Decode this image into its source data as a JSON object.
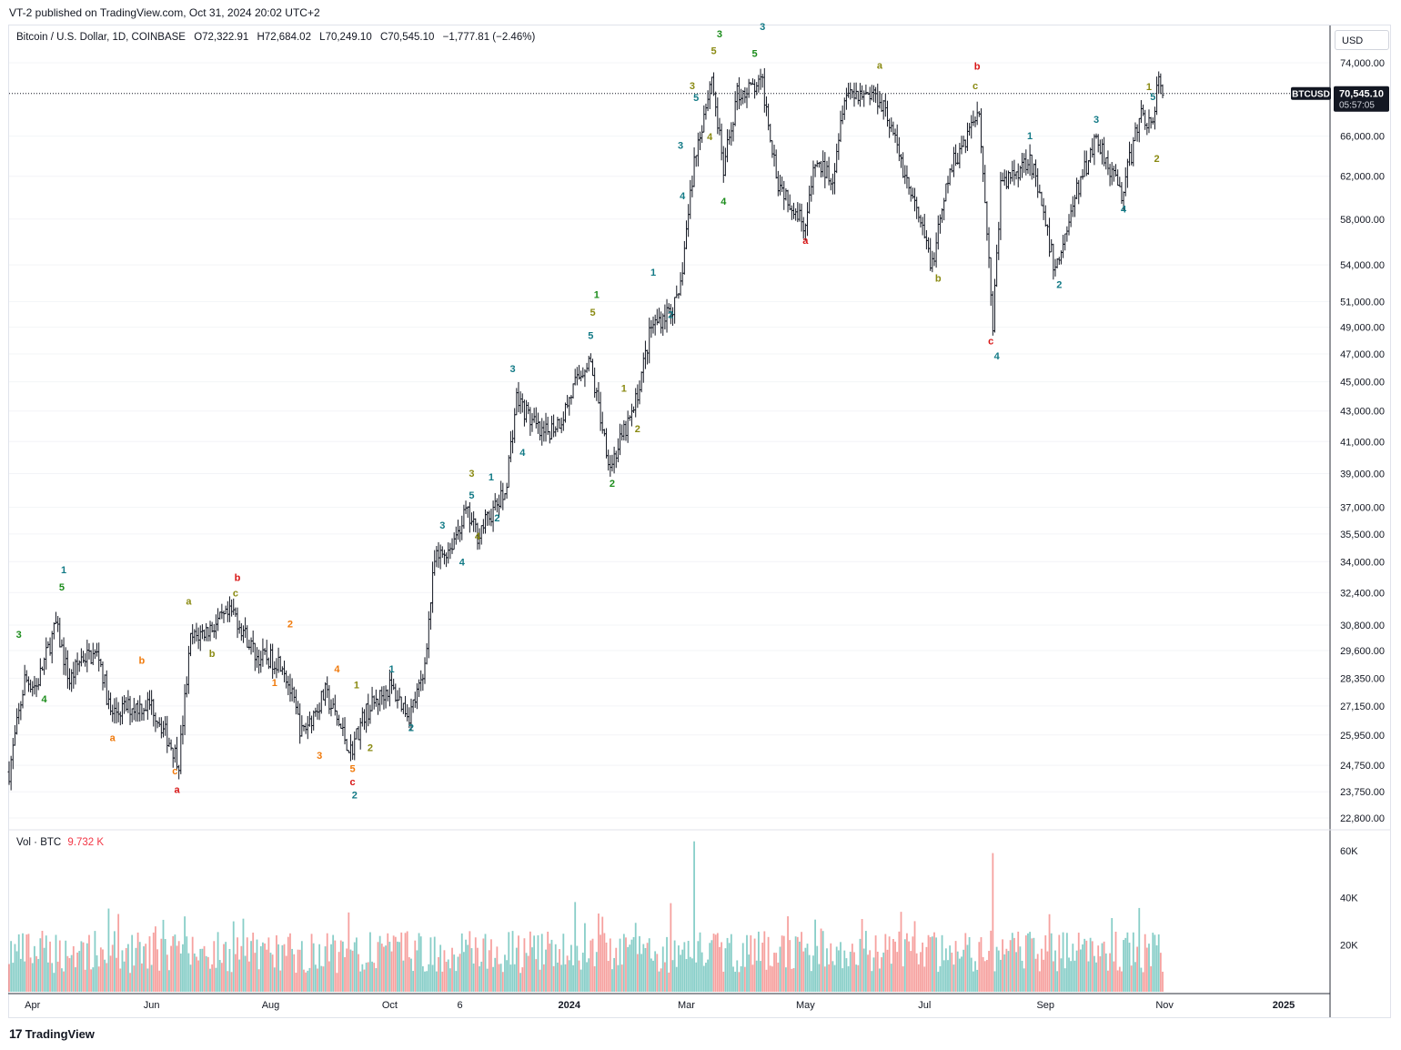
{
  "header": {
    "published": "VT-2 published on TradingView.com, Oct 31, 2024 20:02 UTC+2"
  },
  "legend": {
    "symbol": "Bitcoin / U.S. Dollar, 1D, COINBASE",
    "open": "O72,322.91",
    "high": "H72,684.02",
    "low": "L70,249.10",
    "close": "C70,545.10",
    "change": "−1,777.81 (−2.46%)"
  },
  "volume_legend": {
    "label": "Vol · BTC",
    "value": "9.732 K"
  },
  "currency_button": "USD",
  "price_tag": {
    "symbol": "BTCUSD",
    "price": "70,545.10",
    "countdown": "05:57:05"
  },
  "footer": {
    "logo": "17",
    "brand": "TradingView"
  },
  "colors": {
    "up": "#26a69a",
    "down": "#ef5350",
    "bar": "#131722",
    "tag_bg": "#131722"
  },
  "chart_data": {
    "type": "ohlc-bar",
    "symbol": "BTCUSD",
    "price_axis": {
      "scale": "log",
      "currency": "USD",
      "ticks": [
        "74,000.00",
        "66,000.00",
        "62,000.00",
        "58,000.00",
        "54,000.00",
        "51,000.00",
        "49,000.00",
        "47,000.00",
        "45,000.00",
        "43,000.00",
        "41,000.00",
        "39,000.00",
        "37,000.00",
        "35,500.00",
        "34,000.00",
        "32,400.00",
        "30,800.00",
        "29,600.00",
        "28,350.00",
        "27,150.00",
        "25,950.00",
        "24,750.00",
        "23,750.00",
        "22,800.00"
      ],
      "tick_values": [
        74000,
        66000,
        62000,
        58000,
        54000,
        51000,
        49000,
        47000,
        45000,
        43000,
        41000,
        39000,
        37000,
        35500,
        34000,
        32400,
        30800,
        29600,
        28350,
        27150,
        25950,
        24750,
        23750,
        22800
      ]
    },
    "volume_axis": {
      "ticks": [
        "60K",
        "40K",
        "20K"
      ],
      "tick_values": [
        60000,
        40000,
        20000
      ]
    },
    "time_axis": {
      "ticks": [
        "Apr",
        "Jun",
        "Aug",
        "Oct",
        "6",
        "2024",
        "Mar",
        "May",
        "Jul",
        "Sep",
        "Nov",
        "2025"
      ]
    },
    "path": [
      [
        "2023-03-20",
        24500
      ],
      [
        "2023-03-28",
        28300
      ],
      [
        "2023-04-03",
        28000
      ],
      [
        "2023-04-13",
        30800
      ],
      [
        "2023-04-20",
        28200
      ],
      [
        "2023-04-26",
        29300
      ],
      [
        "2023-05-05",
        29400
      ],
      [
        "2023-05-11",
        26800
      ],
      [
        "2023-05-20",
        27100
      ],
      [
        "2023-06-01",
        27200
      ],
      [
        "2023-06-15",
        24900
      ],
      [
        "2023-06-21",
        30100
      ],
      [
        "2023-06-30",
        30600
      ],
      [
        "2023-07-13",
        31400
      ],
      [
        "2023-07-25",
        29300
      ],
      [
        "2023-08-07",
        29100
      ],
      [
        "2023-08-17",
        26000
      ],
      [
        "2023-08-29",
        27700
      ],
      [
        "2023-09-11",
        25300
      ],
      [
        "2023-09-18",
        26800
      ],
      [
        "2023-10-01",
        28000
      ],
      [
        "2023-10-11",
        26800
      ],
      [
        "2023-10-18",
        28300
      ],
      [
        "2023-10-24",
        34000
      ],
      [
        "2023-11-01",
        34800
      ],
      [
        "2023-11-09",
        36700
      ],
      [
        "2023-11-15",
        35500
      ],
      [
        "2023-11-29",
        37800
      ],
      [
        "2023-12-05",
        43900
      ],
      [
        "2023-12-18",
        41300
      ],
      [
        "2023-12-28",
        42500
      ],
      [
        "2024-01-03",
        44500
      ],
      [
        "2024-01-11",
        46700
      ],
      [
        "2024-01-22",
        39500
      ],
      [
        "2024-02-03",
        43000
      ],
      [
        "2024-02-12",
        49000
      ],
      [
        "2024-02-26",
        51000
      ],
      [
        "2024-03-05",
        63500
      ],
      [
        "2024-03-14",
        72500
      ],
      [
        "2024-03-20",
        62500
      ],
      [
        "2024-03-27",
        70500
      ],
      [
        "2024-04-09",
        71500
      ],
      [
        "2024-04-17",
        61500
      ],
      [
        "2024-05-01",
        57500
      ],
      [
        "2024-05-06",
        63200
      ],
      [
        "2024-05-15",
        62000
      ],
      [
        "2024-05-21",
        70800
      ],
      [
        "2024-06-05",
        70500
      ],
      [
        "2024-06-10",
        69500
      ],
      [
        "2024-06-24",
        60300
      ],
      [
        "2024-07-05",
        54000
      ],
      [
        "2024-07-14",
        62500
      ],
      [
        "2024-07-29",
        69000
      ],
      [
        "2024-08-05",
        49200
      ],
      [
        "2024-08-09",
        61000
      ],
      [
        "2024-08-24",
        64000
      ],
      [
        "2024-09-06",
        53500
      ],
      [
        "2024-09-17",
        60500
      ],
      [
        "2024-09-27",
        66000
      ],
      [
        "2024-10-10",
        60300
      ],
      [
        "2024-10-20",
        68500
      ],
      [
        "2024-10-26",
        66800
      ],
      [
        "2024-10-29",
        72700
      ],
      [
        "2024-10-31",
        70545
      ]
    ],
    "last_price": 70545.1,
    "volume_spikes": [
      [
        "2024-03-05",
        64000
      ],
      [
        "2024-08-05",
        59000
      ]
    ],
    "wave_labels": [
      {
        "t": "3",
        "c": "green",
        "date": "2023-03-25",
        "p": 30200
      },
      {
        "t": "4",
        "c": "green",
        "date": "2023-04-07",
        "p": 27300
      },
      {
        "t": "5",
        "c": "green",
        "date": "2023-04-16",
        "p": 32500
      },
      {
        "t": "1",
        "c": "teal",
        "date": "2023-04-17",
        "p": 33400
      },
      {
        "t": "a",
        "c": "orange",
        "date": "2023-05-12",
        "p": 25700
      },
      {
        "t": "b",
        "c": "orange",
        "date": "2023-05-27",
        "p": 29000
      },
      {
        "t": "c",
        "c": "orange",
        "date": "2023-06-13",
        "p": 24400
      },
      {
        "t": "a",
        "c": "red",
        "date": "2023-06-14",
        "p": 23700
      },
      {
        "t": "a",
        "c": "olive",
        "date": "2023-06-20",
        "p": 31800
      },
      {
        "t": "b",
        "c": "olive",
        "date": "2023-07-02",
        "p": 29300
      },
      {
        "t": "c",
        "c": "olive",
        "date": "2023-07-14",
        "p": 32200
      },
      {
        "t": "b",
        "c": "red",
        "date": "2023-07-15",
        "p": 33000
      },
      {
        "t": "1",
        "c": "orange",
        "date": "2023-08-03",
        "p": 28000
      },
      {
        "t": "2",
        "c": "orange",
        "date": "2023-08-11",
        "p": 30700
      },
      {
        "t": "3",
        "c": "orange",
        "date": "2023-08-26",
        "p": 25000
      },
      {
        "t": "4",
        "c": "orange",
        "date": "2023-09-04",
        "p": 28600
      },
      {
        "t": "5",
        "c": "orange",
        "date": "2023-09-12",
        "p": 24500
      },
      {
        "t": "c",
        "c": "red",
        "date": "2023-09-12",
        "p": 24000
      },
      {
        "t": "2",
        "c": "teal",
        "date": "2023-09-13",
        "p": 23500
      },
      {
        "t": "1",
        "c": "olive",
        "date": "2023-09-14",
        "p": 27900
      },
      {
        "t": "2",
        "c": "olive",
        "date": "2023-09-21",
        "p": 25300
      },
      {
        "t": "1",
        "c": "teal",
        "date": "2023-10-02",
        "p": 28600
      },
      {
        "t": "2",
        "c": "teal",
        "date": "2023-10-12",
        "p": 26100
      },
      {
        "t": "3",
        "c": "teal",
        "date": "2023-10-28",
        "p": 35800
      },
      {
        "t": "4",
        "c": "teal",
        "date": "2023-11-07",
        "p": 33800
      },
      {
        "t": "3",
        "c": "olive",
        "date": "2023-11-12",
        "p": 38800
      },
      {
        "t": "5",
        "c": "teal",
        "date": "2023-11-12",
        "p": 37500
      },
      {
        "t": "1",
        "c": "teal",
        "date": "2023-11-22",
        "p": 38600
      },
      {
        "t": "4",
        "c": "olive",
        "date": "2023-11-15",
        "p": 35200
      },
      {
        "t": "2",
        "c": "teal",
        "date": "2023-11-25",
        "p": 36200
      },
      {
        "t": "3",
        "c": "teal",
        "date": "2023-12-03",
        "p": 45700
      },
      {
        "t": "4",
        "c": "teal",
        "date": "2023-12-08",
        "p": 40100
      },
      {
        "t": "5",
        "c": "teal",
        "date": "2024-01-12",
        "p": 48100
      },
      {
        "t": "5",
        "c": "olive",
        "date": "2024-01-13",
        "p": 49900
      },
      {
        "t": "1",
        "c": "green",
        "date": "2024-01-15",
        "p": 51300
      },
      {
        "t": "2",
        "c": "green",
        "date": "2024-01-23",
        "p": 38200
      },
      {
        "t": "1",
        "c": "olive",
        "date": "2024-01-29",
        "p": 44300
      },
      {
        "t": "2",
        "c": "olive",
        "date": "2024-02-05",
        "p": 41600
      },
      {
        "t": "1",
        "c": "teal",
        "date": "2024-02-13",
        "p": 53100
      },
      {
        "t": "2",
        "c": "teal",
        "date": "2024-02-22",
        "p": 49700
      },
      {
        "t": "3",
        "c": "teal",
        "date": "2024-02-27",
        "p": 64700
      },
      {
        "t": "4",
        "c": "teal",
        "date": "2024-02-28",
        "p": 59800
      },
      {
        "t": "3",
        "c": "olive",
        "date": "2024-03-04",
        "p": 71000
      },
      {
        "t": "5",
        "c": "teal",
        "date": "2024-03-06",
        "p": 69700
      },
      {
        "t": "4",
        "c": "olive",
        "date": "2024-03-13",
        "p": 65600
      },
      {
        "t": "5",
        "c": "olive",
        "date": "2024-03-15",
        "p": 75000
      },
      {
        "t": "3",
        "c": "green",
        "date": "2024-03-18",
        "p": 77000
      },
      {
        "t": "4",
        "c": "green",
        "date": "2024-03-20",
        "p": 59300
      },
      {
        "t": "5",
        "c": "green",
        "date": "2024-04-05",
        "p": 74700
      },
      {
        "t": "3",
        "c": "teal",
        "date": "2024-04-09",
        "p": 77900
      },
      {
        "t": "a",
        "c": "red",
        "date": "2024-05-01",
        "p": 55800
      },
      {
        "t": "a",
        "c": "olive",
        "date": "2024-06-08",
        "p": 73300
      },
      {
        "t": "b",
        "c": "olive",
        "date": "2024-07-08",
        "p": 52600
      },
      {
        "t": "c",
        "c": "olive",
        "date": "2024-07-27",
        "p": 71000
      },
      {
        "t": "b",
        "c": "red",
        "date": "2024-07-28",
        "p": 73200
      },
      {
        "t": "c",
        "c": "red",
        "date": "2024-08-04",
        "p": 47700
      },
      {
        "t": "4",
        "c": "teal",
        "date": "2024-08-07",
        "p": 46600
      },
      {
        "t": "1",
        "c": "teal",
        "date": "2024-08-24",
        "p": 65700
      },
      {
        "t": "2",
        "c": "teal",
        "date": "2024-09-08",
        "p": 52100
      },
      {
        "t": "3",
        "c": "teal",
        "date": "2024-09-27",
        "p": 67400
      },
      {
        "t": "4",
        "c": "teal",
        "date": "2024-10-11",
        "p": 58600
      },
      {
        "t": "1",
        "c": "olive",
        "date": "2024-10-24",
        "p": 70900
      },
      {
        "t": "5",
        "c": "teal",
        "date": "2024-10-26",
        "p": 69800
      },
      {
        "t": "2",
        "c": "olive",
        "date": "2024-10-28",
        "p": 63400
      }
    ]
  }
}
